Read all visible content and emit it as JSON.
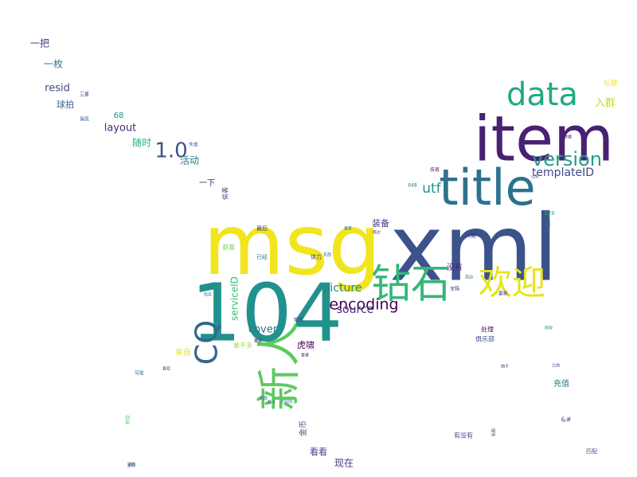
{
  "words": [
    {
      "text": "xml",
      "color": "#3b528b"
    },
    {
      "text": "msg",
      "color": "#f1e51d"
    },
    {
      "text": "item",
      "color": "#482172"
    },
    {
      "text": "104",
      "color": "#21918c"
    },
    {
      "text": "title",
      "color": "#2c728e"
    },
    {
      "text": "data",
      "color": "#22a884"
    },
    {
      "text": "钻石",
      "color": "#35b779"
    },
    {
      "text": "欢迎",
      "color": "#e5e419"
    },
    {
      "text": "新人",
      "color": "#5ec962"
    },
    {
      "text": "CQ",
      "color": "#31688e"
    },
    {
      "text": "version",
      "color": "#1f9e89"
    },
    {
      "text": "encoding",
      "color": "#440154"
    },
    {
      "text": "templateID",
      "color": "#3e4a89"
    },
    {
      "text": "1.0",
      "color": "#3b528b"
    },
    {
      "text": "picture",
      "color": "#26828e"
    },
    {
      "text": "utf",
      "color": "#21918c"
    },
    {
      "text": "source",
      "color": "#472d7b"
    },
    {
      "text": "serviceID",
      "color": "#3aba76"
    },
    {
      "text": "cover",
      "color": "#2c728e"
    },
    {
      "text": "layout",
      "color": "#482878"
    },
    {
      "text": "resid",
      "color": "#3e4a89"
    },
    {
      "text": "入群",
      "color": "#bddf26"
    },
    {
      "text": "一枚",
      "color": "#2a788e"
    },
    {
      "text": "一把",
      "color": "#433e85"
    },
    {
      "text": "活动",
      "color": "#287d8e"
    },
    {
      "text": "随时",
      "color": "#27ad81"
    },
    {
      "text": "虎啸",
      "color": "#440154"
    },
    {
      "text": "装备",
      "color": "#443a83"
    },
    {
      "text": "没有",
      "color": "#482475"
    },
    {
      "text": "充值",
      "color": "#2d708e"
    },
    {
      "text": "现在",
      "color": "#424086"
    },
    {
      "text": "看看",
      "color": "#414487"
    },
    {
      "text": "球拍",
      "color": "#32648e"
    },
    {
      "text": "一下",
      "color": "#48186a"
    },
    {
      "text": "来自",
      "color": "#e5e419"
    },
    {
      "text": "金币",
      "color": "#3e4c8a"
    },
    {
      "text": "68",
      "color": "#21908d"
    },
    {
      "text": "私聊",
      "color": "#fde725"
    },
    {
      "text": "俱乐部",
      "color": "#404688"
    },
    {
      "text": "处理",
      "color": "#471365"
    },
    {
      "text": "差不多",
      "color": "#a0da39"
    },
    {
      "text": "有没有",
      "color": "#404688"
    },
    {
      "text": "恭喜",
      "color": "#7ad151"
    },
    {
      "text": "最后",
      "color": "#3e4989"
    },
    {
      "text": "已经",
      "color": "#2a778e"
    },
    {
      "text": "体力",
      "color": "#443b84"
    },
    {
      "text": "大佬",
      "color": "#46337e"
    },
    {
      "text": "人机",
      "color": "#2f6c8e"
    },
    {
      "text": "知道",
      "color": "#3d4e8a"
    },
    {
      "text": "三星",
      "color": "#482576"
    },
    {
      "text": "保底",
      "color": "#39568c"
    },
    {
      "text": "朱雀",
      "color": "#2a768e"
    },
    {
      "text": "宝箱",
      "color": "#3f4788"
    },
    {
      "text": "最新",
      "color": "#453781"
    },
    {
      "text": "偷袭",
      "color": "#3b528b"
    },
    {
      "text": "传奇",
      "color": "#440154"
    },
    {
      "text": "648",
      "color": "#2c738e"
    },
    {
      "text": "有些",
      "color": "#5ec962"
    },
    {
      "text": "&#",
      "color": "#3e4a89"
    },
    {
      "text": "匹配",
      "color": "#39568c"
    },
    {
      "text": "可能",
      "color": "#2d708e"
    },
    {
      "text": "喜欢",
      "color": "#48186a"
    },
    {
      "text": "2000",
      "color": "#2a788e"
    },
    {
      "text": "登录",
      "color": "#482677"
    },
    {
      "text": "拍子",
      "color": "#46307e"
    },
    {
      "text": "之前",
      "color": "#424086"
    },
    {
      "text": "刷种",
      "color": "#22a884"
    },
    {
      "text": "128",
      "color": "#3aba76"
    },
    {
      "text": "两次",
      "color": "#433e85"
    },
    {
      "text": "香蕉",
      "color": "#2a788e"
    },
    {
      "text": "山东",
      "color": "#3e4a89"
    },
    {
      "text": "情兵",
      "color": "#2c728e"
    },
    {
      "text": "东西",
      "color": "#3b528b"
    },
    {
      "text": "数据",
      "color": "#482475"
    },
    {
      "text": "打卡",
      "color": "#3e4a89"
    },
    {
      "text": "周边",
      "color": "#2a778e"
    },
    {
      "text": "送的",
      "color": "#440154"
    },
    {
      "text": "这种",
      "color": "#31688e"
    },
    {
      "text": "私服",
      "color": "#3b528b"
    },
    {
      "text": "重启",
      "color": "#440154"
    },
    {
      "text": "奖励",
      "color": "#2c728e"
    }
  ]
}
